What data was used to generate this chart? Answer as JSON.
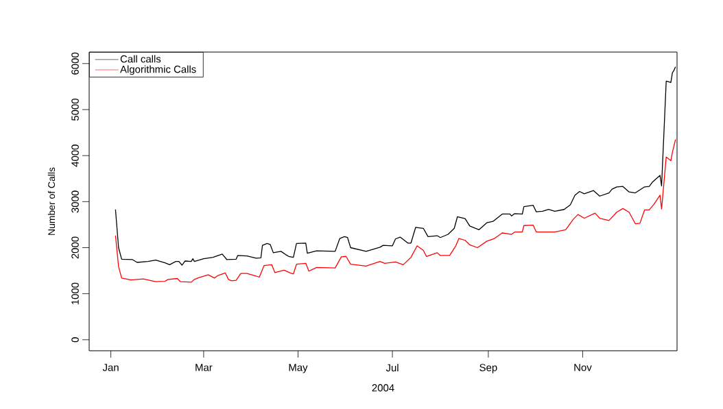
{
  "chart_data": {
    "type": "line",
    "xlabel": "2004",
    "ylabel": "Number of Calls",
    "xlim": [
      "2003-12-18",
      "2005-01-01"
    ],
    "ylim": [
      -240,
      6250
    ],
    "xticks": [
      {
        "value": "2004-01-01",
        "label": "Jan"
      },
      {
        "value": "2004-03-01",
        "label": "Mar"
      },
      {
        "value": "2004-05-01",
        "label": "May"
      },
      {
        "value": "2004-07-01",
        "label": "Jul"
      },
      {
        "value": "2004-09-01",
        "label": "Sep"
      },
      {
        "value": "2004-11-01",
        "label": "Nov"
      }
    ],
    "yticks": [
      0,
      1000,
      2000,
      3000,
      4000,
      5000,
      6000
    ],
    "legend": "top left",
    "series": [
      {
        "name": "Call calls",
        "color": "#000000",
        "x": [
          "2004-01-04",
          "2004-01-06",
          "2004-01-08",
          "2004-01-15",
          "2004-01-18",
          "2004-01-25",
          "2004-01-30",
          "2004-02-05",
          "2004-02-08",
          "2004-02-12",
          "2004-02-14",
          "2004-02-16",
          "2004-02-18",
          "2004-02-22",
          "2004-02-23",
          "2004-02-24",
          "2004-03-01",
          "2004-03-07",
          "2004-03-13",
          "2004-03-16",
          "2004-03-22",
          "2004-03-23",
          "2004-03-29",
          "2004-04-04",
          "2004-04-07",
          "2004-04-08",
          "2004-04-11",
          "2004-04-13",
          "2004-04-15",
          "2004-04-20",
          "2004-04-23",
          "2004-04-25",
          "2004-04-28",
          "2004-04-30",
          "2004-05-06",
          "2004-05-07",
          "2004-05-13",
          "2004-05-25",
          "2004-05-28",
          "2004-05-31",
          "2004-06-02",
          "2004-06-04",
          "2004-06-14",
          "2004-06-23",
          "2004-06-25",
          "2004-07-01",
          "2004-07-03",
          "2004-07-06",
          "2004-07-11",
          "2004-07-13",
          "2004-07-16",
          "2004-07-21",
          "2004-07-24",
          "2004-07-30",
          "2004-08-01",
          "2004-08-06",
          "2004-08-10",
          "2004-08-12",
          "2004-08-17",
          "2004-08-20",
          "2004-08-26",
          "2004-08-31",
          "2004-09-04",
          "2004-09-10",
          "2004-09-15",
          "2004-09-16",
          "2004-09-18",
          "2004-09-23",
          "2004-09-24",
          "2004-09-30",
          "2004-10-02",
          "2004-10-06",
          "2004-10-10",
          "2004-10-14",
          "2004-10-20",
          "2004-10-24",
          "2004-10-27",
          "2004-10-30",
          "2004-11-02",
          "2004-11-08",
          "2004-11-12",
          "2004-11-18",
          "2004-11-20",
          "2004-11-23",
          "2004-11-27",
          "2004-12-01",
          "2004-12-05",
          "2004-12-11",
          "2004-12-14",
          "2004-12-16",
          "2004-12-21",
          "2004-12-22",
          "2004-12-25",
          "2004-12-28",
          "2004-12-29",
          "2004-12-30",
          "2004-12-31"
        ],
        "values": [
          2830,
          2000,
          1750,
          1740,
          1680,
          1700,
          1730,
          1670,
          1630,
          1700,
          1700,
          1620,
          1710,
          1700,
          1760,
          1700,
          1760,
          1790,
          1860,
          1740,
          1750,
          1830,
          1820,
          1770,
          1780,
          2050,
          2090,
          2070,
          1890,
          1920,
          1850,
          1810,
          1790,
          2090,
          2100,
          1880,
          1930,
          1920,
          2200,
          2240,
          2220,
          2000,
          1920,
          2010,
          2050,
          2040,
          2190,
          2230,
          2100,
          2100,
          2440,
          2420,
          2240,
          2260,
          2220,
          2290,
          2420,
          2670,
          2630,
          2470,
          2390,
          2540,
          2570,
          2730,
          2730,
          2690,
          2740,
          2730,
          2890,
          2920,
          2780,
          2790,
          2830,
          2790,
          2830,
          2930,
          3140,
          3220,
          3170,
          3240,
          3120,
          3190,
          3270,
          3320,
          3330,
          3210,
          3190,
          3320,
          3330,
          3420,
          3570,
          3340,
          5620,
          5590,
          5800,
          5850,
          5930
        ]
      },
      {
        "name": "Algorithmic Calls",
        "color": "#ff0000",
        "x": [
          "2004-01-04",
          "2004-01-06",
          "2004-01-08",
          "2004-01-14",
          "2004-01-22",
          "2004-01-30",
          "2004-02-05",
          "2004-02-07",
          "2004-02-13",
          "2004-02-15",
          "2004-02-22",
          "2004-02-24",
          "2004-02-27",
          "2004-03-04",
          "2004-03-08",
          "2004-03-10",
          "2004-03-15",
          "2004-03-17",
          "2004-03-19",
          "2004-03-22",
          "2004-03-25",
          "2004-03-29",
          "2004-04-03",
          "2004-04-06",
          "2004-04-09",
          "2004-04-14",
          "2004-04-16",
          "2004-04-22",
          "2004-04-26",
          "2004-04-28",
          "2004-04-30",
          "2004-05-06",
          "2004-05-08",
          "2004-05-13",
          "2004-05-25",
          "2004-05-29",
          "2004-06-01",
          "2004-06-04",
          "2004-06-14",
          "2004-06-23",
          "2004-06-26",
          "2004-07-03",
          "2004-07-08",
          "2004-07-13",
          "2004-07-17",
          "2004-07-21",
          "2004-07-23",
          "2004-07-30",
          "2004-08-01",
          "2004-08-07",
          "2004-08-11",
          "2004-08-13",
          "2004-08-17",
          "2004-08-20",
          "2004-08-25",
          "2004-08-31",
          "2004-09-05",
          "2004-09-10",
          "2004-09-16",
          "2004-09-18",
          "2004-09-23",
          "2004-09-24",
          "2004-09-30",
          "2004-10-02",
          "2004-10-14",
          "2004-10-21",
          "2004-10-26",
          "2004-10-29",
          "2004-11-02",
          "2004-11-09",
          "2004-11-12",
          "2004-11-18",
          "2004-11-23",
          "2004-11-27",
          "2004-12-01",
          "2004-12-05",
          "2004-12-08",
          "2004-12-11",
          "2004-12-14",
          "2004-12-17",
          "2004-12-21",
          "2004-12-22",
          "2004-12-25",
          "2004-12-28",
          "2004-12-29",
          "2004-12-31"
        ],
        "values": [
          2265,
          1590,
          1340,
          1300,
          1320,
          1260,
          1270,
          1310,
          1330,
          1260,
          1250,
          1310,
          1350,
          1410,
          1340,
          1390,
          1450,
          1310,
          1280,
          1290,
          1440,
          1440,
          1390,
          1360,
          1610,
          1630,
          1460,
          1510,
          1450,
          1430,
          1640,
          1660,
          1490,
          1570,
          1560,
          1800,
          1810,
          1640,
          1600,
          1700,
          1660,
          1690,
          1630,
          1790,
          2040,
          1940,
          1810,
          1890,
          1830,
          1830,
          2040,
          2200,
          2160,
          2060,
          2000,
          2140,
          2200,
          2320,
          2290,
          2340,
          2340,
          2480,
          2490,
          2340,
          2340,
          2390,
          2620,
          2720,
          2640,
          2750,
          2640,
          2590,
          2770,
          2850,
          2770,
          2520,
          2530,
          2820,
          2820,
          2940,
          3140,
          2840,
          3970,
          3890,
          4070,
          4350
        ]
      }
    ]
  }
}
